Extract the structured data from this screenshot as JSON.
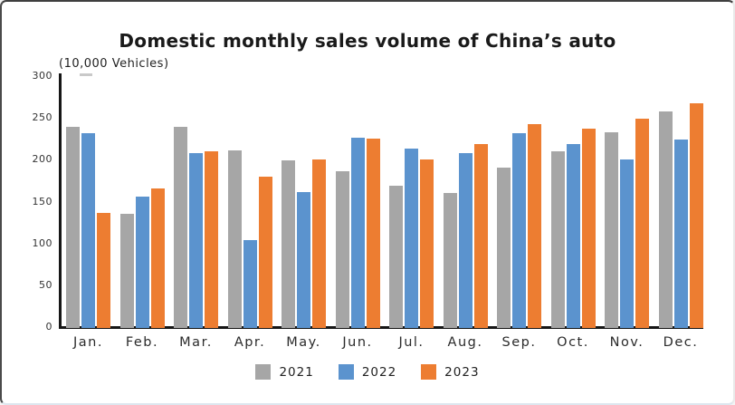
{
  "chart_data": {
    "type": "bar",
    "title": "Domestic monthly sales volume of China’s auto",
    "unit_label": "(10,000 Vehicles)",
    "categories": [
      "Jan.",
      "Feb.",
      "Mar.",
      "Apr.",
      "May.",
      "Jun.",
      "Jul.",
      "Aug.",
      "Sep.",
      "Oct.",
      "Nov.",
      "Dec."
    ],
    "series": [
      {
        "name": "2021",
        "color": "#a6a6a6",
        "values": [
          240,
          136,
          240,
          212,
          200,
          187,
          170,
          161,
          191,
          211,
          233,
          258
        ]
      },
      {
        "name": "2022",
        "color": "#5b93ce",
        "values": [
          232,
          156,
          208,
          105,
          162,
          227,
          214,
          208,
          232,
          219,
          201,
          225
        ]
      },
      {
        "name": "2023",
        "color": "#ed7d31",
        "values": [
          137,
          166,
          211,
          180,
          201,
          226,
          201,
          219,
          243,
          238,
          250,
          268
        ]
      }
    ],
    "y_axis": {
      "min": 0,
      "max": 300,
      "tick_step": 50,
      "ticks": [
        0,
        50,
        100,
        150,
        200,
        250,
        300
      ]
    },
    "x_axis_label": "",
    "y_axis_label": "",
    "legend_position": "bottom",
    "grid": false
  }
}
